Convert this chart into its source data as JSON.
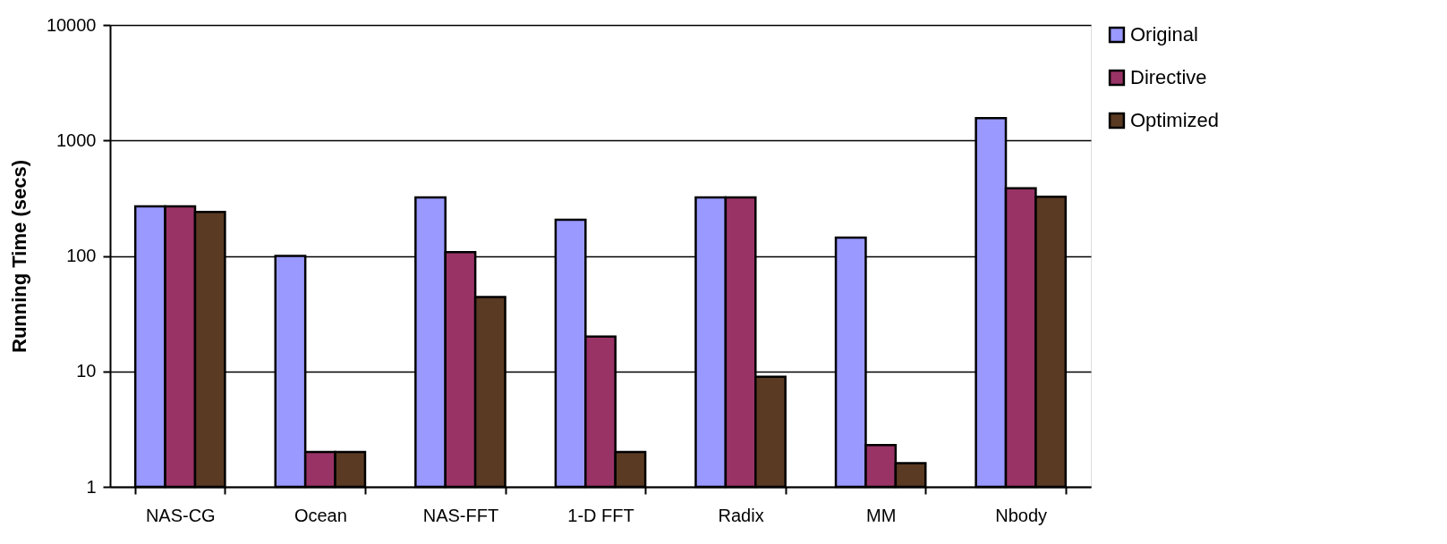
{
  "chart_data": {
    "type": "bar",
    "ylabel": "Running Time (secs)",
    "categories": [
      "NAS-CG",
      "Ocean",
      "NAS-FFT",
      "1-D FFT",
      "Radix",
      "MM",
      "Nbody"
    ],
    "series": [
      {
        "name": "Original",
        "color": "#9999ff",
        "values": [
          269,
          100,
          321,
          206,
          321,
          144,
          1560
        ]
      },
      {
        "name": "Directive",
        "color": "#993366",
        "values": [
          269,
          2.0,
          108,
          20,
          321,
          2.3,
          385
        ]
      },
      {
        "name": "Optimized",
        "color": "#5a3a22",
        "values": [
          240,
          2.0,
          44,
          2.0,
          9.0,
          1.6,
          325
        ]
      }
    ],
    "log": true,
    "ylim": [
      1,
      10000
    ],
    "yticks": [
      1,
      10,
      100,
      1000,
      10000
    ],
    "grid": "y",
    "legend": "right"
  }
}
